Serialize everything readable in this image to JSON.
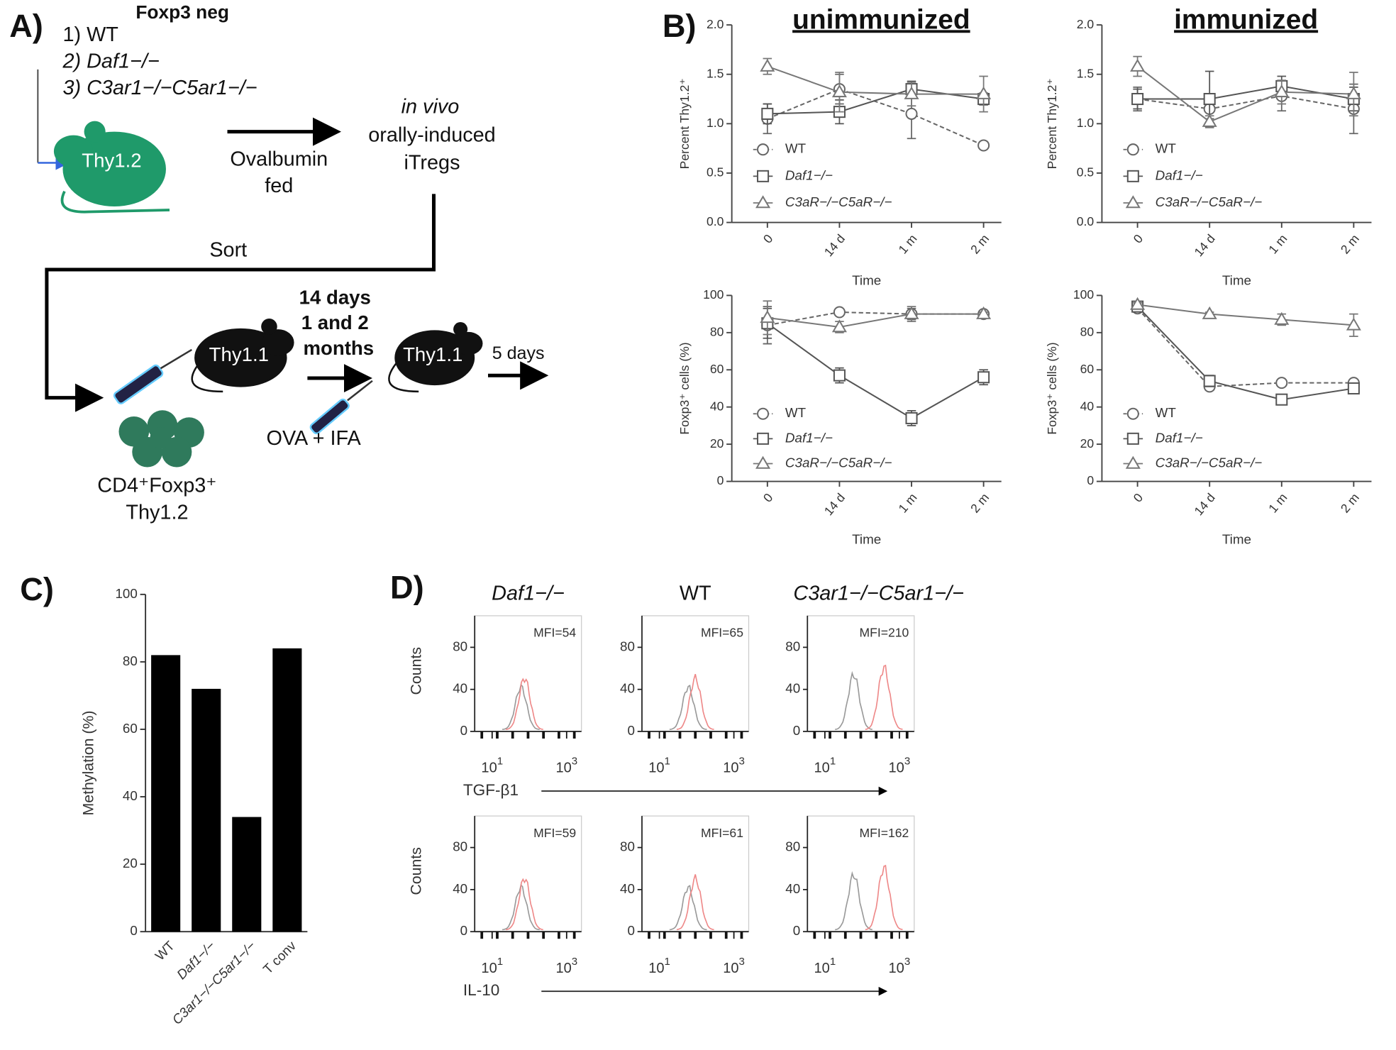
{
  "diagram": {
    "panel": "A)",
    "groups": [
      "1) WT",
      "2) Daf1−/−",
      "3) C3ar1−/−C5ar1−/−"
    ],
    "group_note": "Foxp3 neg",
    "donor_label": "Thy1.2",
    "feed": [
      "Ovalbumin",
      "fed"
    ],
    "product": [
      "in vivo",
      "orally-induced",
      "iTregs"
    ],
    "sort": "Sort",
    "host_label": "Thy1.1",
    "wait": [
      "14 days",
      "1 and 2",
      "months"
    ],
    "host2_label": "Thy1.1",
    "boost": "OVA + IFA",
    "readout": "5 days",
    "cells": [
      "CD4⁺Foxp3⁺",
      "Thy1.2"
    ]
  },
  "chart_data": [
    {
      "type": "line",
      "panel": "B)",
      "title": "unimmunized",
      "xlabel": "Time",
      "ylabel": "Percent Thy1.2⁺",
      "categories": [
        "0",
        "14 d",
        "1 m",
        "2 m"
      ],
      "ylim": [
        0,
        2
      ],
      "yticks": [
        {
          "value": 0,
          "label": "0.0"
        },
        0.5,
        {
          "value": 1,
          "label": "1.0"
        },
        1.5,
        {
          "value": 2,
          "label": "2.0"
        }
      ],
      "series": [
        {
          "name": "WT",
          "color": "#666666",
          "marker": "circle",
          "dashed": true,
          "values": [
            1.05,
            1.35,
            1.1,
            0.78
          ],
          "errors": [
            0.15,
            0.15,
            0.25,
            0.03
          ]
        },
        {
          "name": "Daf1−/−",
          "color": "#555555",
          "marker": "square",
          "dashed": false,
          "values": [
            1.1,
            1.12,
            1.35,
            1.25
          ],
          "errors": [
            0.1,
            0.12,
            0.08,
            0.06
          ]
        },
        {
          "name": "C3aR−/−C5aR−/−",
          "color": "#777777",
          "marker": "triangle",
          "dashed": false,
          "values": [
            1.58,
            1.32,
            1.3,
            1.3
          ],
          "errors": [
            0.08,
            0.2,
            0.12,
            0.18
          ]
        }
      ]
    },
    {
      "type": "line",
      "title": "immunized",
      "xlabel": "Time",
      "ylabel": "Percent Thy1.2⁺",
      "categories": [
        "0",
        "14 d",
        "1 m",
        "2 m"
      ],
      "ylim": [
        0,
        2
      ],
      "yticks": [
        {
          "value": 0,
          "label": "0.0"
        },
        0.5,
        {
          "value": 1,
          "label": "1.0"
        },
        1.5,
        {
          "value": 2,
          "label": "2.0"
        }
      ],
      "series": [
        {
          "name": "WT",
          "color": "#666666",
          "marker": "circle",
          "dashed": true,
          "values": [
            1.25,
            1.15,
            1.28,
            1.15
          ],
          "errors": [
            0.12,
            0.1,
            0.15,
            0.25
          ]
        },
        {
          "name": "Daf1−/−",
          "color": "#555555",
          "marker": "square",
          "dashed": false,
          "values": [
            1.25,
            1.25,
            1.38,
            1.25
          ],
          "errors": [
            0.1,
            0.28,
            0.1,
            0.12
          ]
        },
        {
          "name": "C3aR−/−C5aR−/−",
          "color": "#777777",
          "marker": "triangle",
          "dashed": false,
          "values": [
            1.58,
            1.02,
            1.32,
            1.3
          ],
          "errors": [
            0.1,
            0.06,
            0.12,
            0.22
          ]
        }
      ]
    },
    {
      "type": "line",
      "xlabel": "Time",
      "ylabel": "Foxp3⁺ cells (%)",
      "categories": [
        "0",
        "14 d",
        "1 m",
        "2 m"
      ],
      "ylim": [
        0,
        100
      ],
      "yticks": [
        0,
        20,
        40,
        60,
        80,
        100
      ],
      "series": [
        {
          "name": "WT",
          "color": "#666666",
          "marker": "circle",
          "dashed": true,
          "values": [
            84,
            91,
            90,
            90
          ],
          "errors": [
            10,
            1,
            3,
            1
          ]
        },
        {
          "name": "Daf1−/−",
          "color": "#555555",
          "marker": "square",
          "dashed": false,
          "values": [
            85,
            57,
            34,
            56
          ],
          "errors": [
            8,
            4,
            4,
            4
          ]
        },
        {
          "name": "C3aR−/−C5aR−/−",
          "color": "#777777",
          "marker": "triangle",
          "dashed": false,
          "values": [
            88,
            83,
            90,
            90
          ],
          "errors": [
            9,
            3,
            4,
            1
          ]
        }
      ]
    },
    {
      "type": "line",
      "xlabel": "Time",
      "ylabel": "Foxp3⁺ cells (%)",
      "categories": [
        "0",
        "14 d",
        "1 m",
        "2 m"
      ],
      "ylim": [
        0,
        100
      ],
      "yticks": [
        0,
        20,
        40,
        60,
        80,
        100
      ],
      "series": [
        {
          "name": "WT",
          "color": "#666666",
          "marker": "circle",
          "dashed": true,
          "values": [
            93,
            51,
            53,
            53
          ],
          "errors": [
            2,
            2,
            1,
            1
          ]
        },
        {
          "name": "Daf1−/−",
          "color": "#555555",
          "marker": "square",
          "dashed": false,
          "values": [
            94,
            54,
            44,
            50
          ],
          "errors": [
            2,
            3,
            2,
            2
          ]
        },
        {
          "name": "C3aR−/−C5aR−/−",
          "color": "#777777",
          "marker": "triangle",
          "dashed": false,
          "values": [
            95,
            90,
            87,
            84
          ],
          "errors": [
            1,
            1,
            3,
            6
          ]
        }
      ]
    },
    {
      "type": "bar",
      "panel": "C)",
      "ylabel": "Methylation (%)",
      "categories": [
        "WT",
        "Daf1−/−",
        "C3ar1−/−C5ar1−/−",
        "T conv"
      ],
      "values": [
        82,
        72,
        34,
        84
      ],
      "color": "#000000",
      "ylim": [
        0,
        100
      ],
      "yticks": [
        0,
        20,
        40,
        60,
        80,
        100
      ]
    },
    {
      "type": "histogram-grid",
      "panel": "D)",
      "ylabel": "Counts",
      "columns": [
        "Daf1−/−",
        "WT",
        "C3ar1−/−C5ar1−/−"
      ],
      "rows": [
        "TGF-β1",
        "IL-10"
      ],
      "mfi": [
        [
          "MFI=54",
          "MFI=65",
          "MFI=210"
        ],
        [
          "MFI=59",
          "MFI=61",
          "MFI=162"
        ]
      ],
      "log_x": true,
      "xlim": [
        3.4,
        2500
      ],
      "xticks": [
        {
          "value": 10,
          "label": "10",
          "sup": "1"
        },
        {
          "value": 1000,
          "label": "10",
          "sup": "3"
        }
      ],
      "ylim": [
        0,
        110
      ],
      "yticks": [
        0,
        40,
        80
      ]
    }
  ]
}
